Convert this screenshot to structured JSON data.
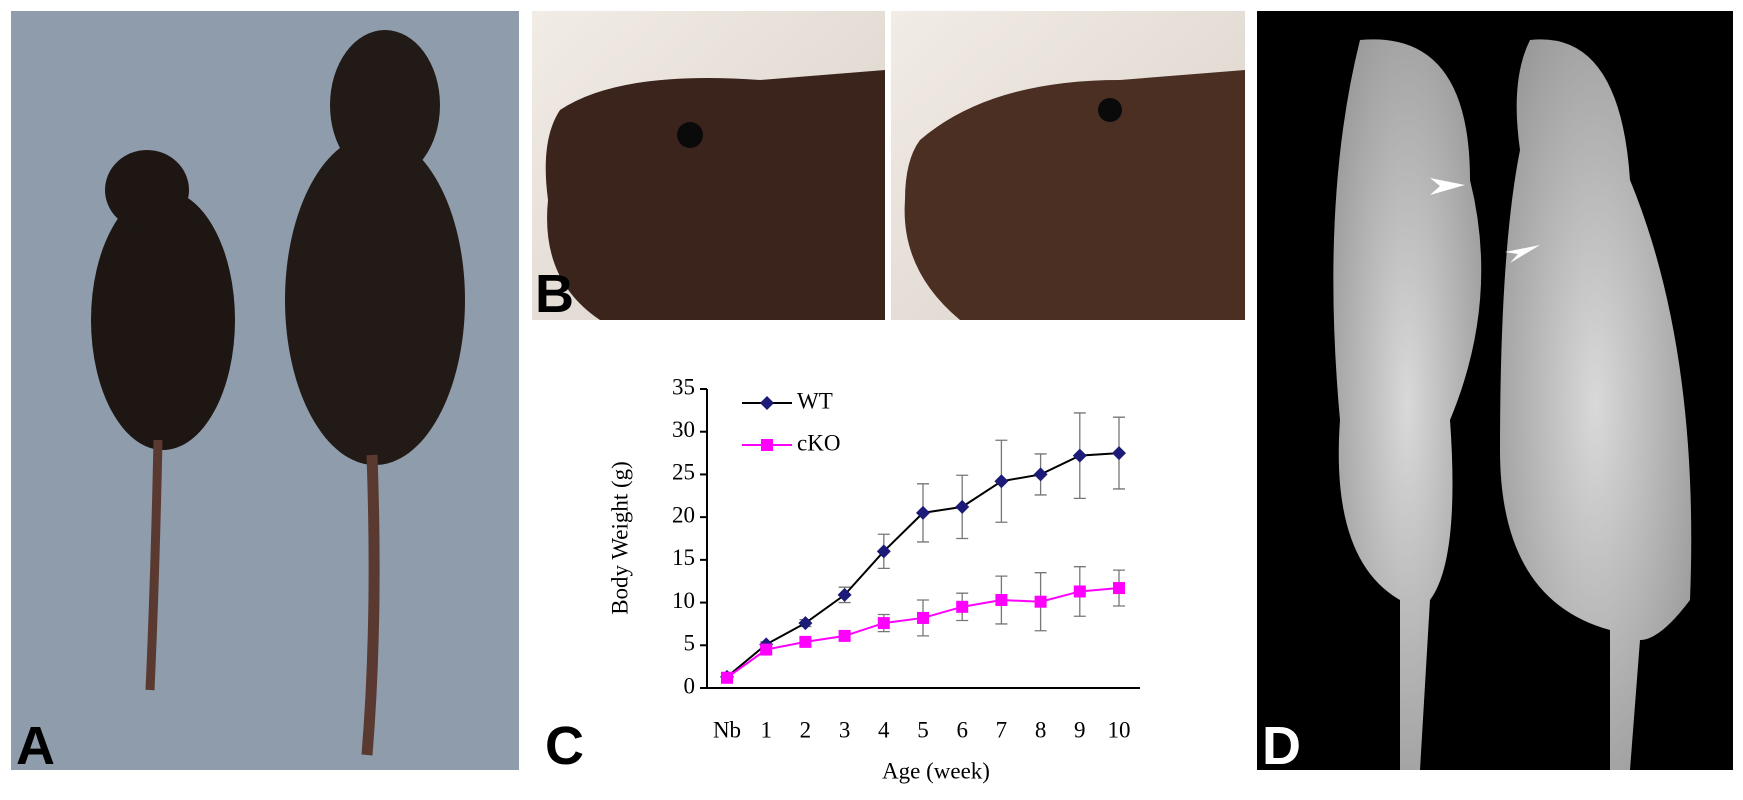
{
  "panels": [
    "A",
    "B",
    "C",
    "D"
  ],
  "chart_data": {
    "type": "line",
    "x_label": "Age (week)",
    "y_label": "Body Weight (g)",
    "categories": [
      "Nb",
      "1",
      "2",
      "3",
      "4",
      "5",
      "6",
      "7",
      "8",
      "9",
      "10"
    ],
    "series": [
      {
        "name": "WT",
        "color": "#1c1c78",
        "line_color": "#000000",
        "marker": "diamond",
        "values": [
          1.3,
          5.1,
          7.6,
          10.9,
          16,
          20.5,
          21.2,
          24.2,
          25,
          27.2,
          27.5
        ],
        "errors": [
          0.2,
          0.3,
          0.4,
          0.9,
          2,
          3.4,
          3.7,
          4.8,
          2.4,
          5,
          4.2
        ]
      },
      {
        "name": "cKO",
        "color": "#ff00ff",
        "line_color": "#ff00ff",
        "marker": "square",
        "values": [
          1.2,
          4.5,
          5.4,
          6.1,
          7.6,
          8.2,
          9.5,
          10.3,
          10.1,
          11.3,
          11.7
        ],
        "errors": [
          0.2,
          0.4,
          0.4,
          0.4,
          1,
          2.1,
          1.6,
          2.8,
          3.4,
          2.9,
          2.1
        ]
      }
    ],
    "ylim": [
      0,
      35
    ],
    "yticks": [
      0,
      5,
      10,
      15,
      20,
      25,
      30,
      35
    ],
    "grid": false
  }
}
